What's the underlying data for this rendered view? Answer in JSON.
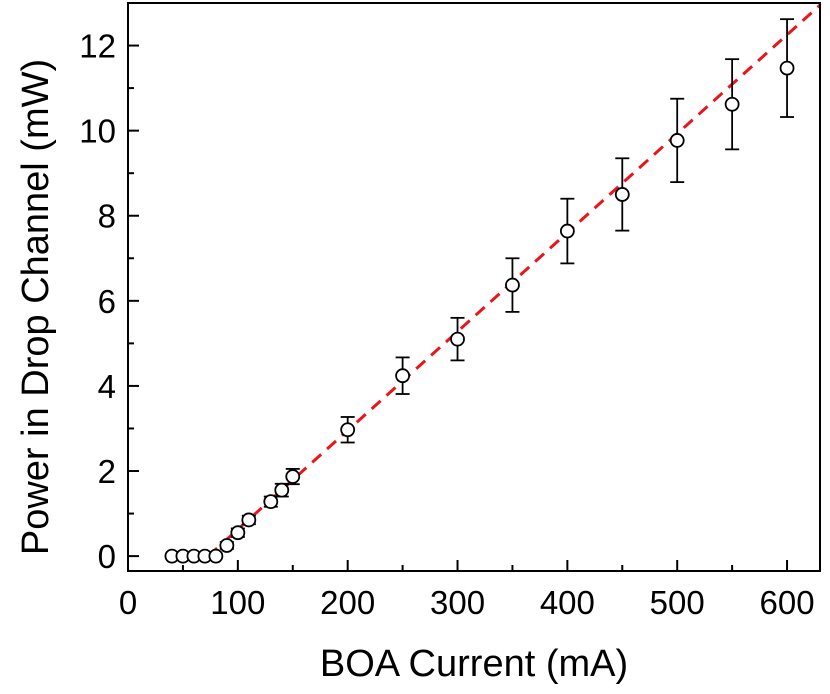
{
  "chart_data": {
    "type": "scatter",
    "title": "",
    "xlabel": "BOA Current (mA)",
    "ylabel": "Power in Drop Channel (mW)",
    "xlim": [
      0,
      630
    ],
    "ylim": [
      -0.35,
      13.0
    ],
    "x_ticks": [
      0,
      100,
      200,
      300,
      400,
      500,
      600
    ],
    "y_ticks": [
      0,
      2,
      4,
      6,
      8,
      10,
      12
    ],
    "x_tick_labels": [
      "0",
      "100",
      "200",
      "300",
      "400",
      "500",
      "600"
    ],
    "y_tick_labels": [
      "0",
      "2",
      "4",
      "6",
      "8",
      "10",
      "12"
    ],
    "grid": false,
    "legend": "none",
    "series": [
      {
        "type": "scatter",
        "marker": "open-circle",
        "color": "#000000",
        "points": [
          {
            "x": 40,
            "y": 0.0,
            "yerr": 0.0
          },
          {
            "x": 50,
            "y": 0.0,
            "yerr": 0.0
          },
          {
            "x": 60,
            "y": 0.0,
            "yerr": 0.0
          },
          {
            "x": 70,
            "y": 0.0,
            "yerr": 0.0
          },
          {
            "x": 80,
            "y": 0.0,
            "yerr": 0.0
          },
          {
            "x": 90,
            "y": 0.25,
            "yerr": 0.08
          },
          {
            "x": 100,
            "y": 0.55,
            "yerr": 0.1
          },
          {
            "x": 110,
            "y": 0.85,
            "yerr": 0.1
          },
          {
            "x": 130,
            "y": 1.28,
            "yerr": 0.12
          },
          {
            "x": 140,
            "y": 1.55,
            "yerr": 0.15
          },
          {
            "x": 150,
            "y": 1.87,
            "yerr": 0.18
          },
          {
            "x": 200,
            "y": 2.97,
            "yerr": 0.3
          },
          {
            "x": 250,
            "y": 4.24,
            "yerr": 0.43
          },
          {
            "x": 300,
            "y": 5.1,
            "yerr": 0.5
          },
          {
            "x": 350,
            "y": 6.37,
            "yerr": 0.63
          },
          {
            "x": 400,
            "y": 7.64,
            "yerr": 0.76
          },
          {
            "x": 450,
            "y": 8.5,
            "yerr": 0.85
          },
          {
            "x": 500,
            "y": 9.77,
            "yerr": 0.98
          },
          {
            "x": 550,
            "y": 10.62,
            "yerr": 1.06
          },
          {
            "x": 600,
            "y": 11.47,
            "yerr": 1.15
          }
        ]
      },
      {
        "type": "line",
        "style": "dashed",
        "color": "#e8151b",
        "x": [
          73,
          630
        ],
        "y": [
          0.0,
          12.95
        ]
      }
    ]
  }
}
